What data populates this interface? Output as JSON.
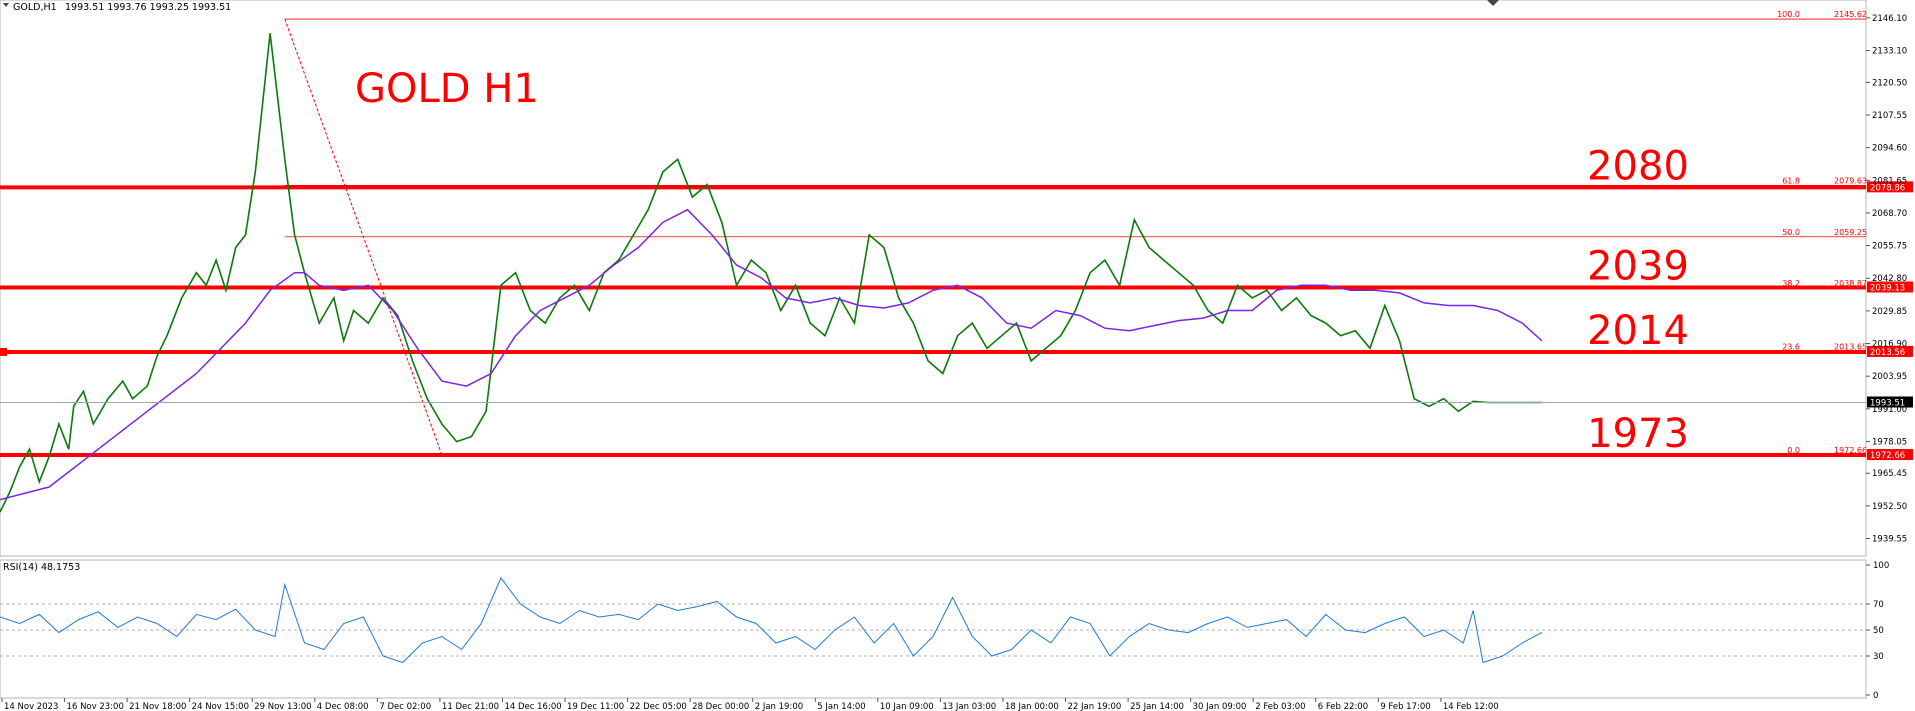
{
  "chart_data": {
    "type": "line",
    "header": {
      "symbol": "GOLD,H1",
      "ohlc": "1993.51 1993.76 1993.25 1993.51"
    },
    "title": "GOLD H1",
    "price_axis": {
      "ylim": [
        1935.0,
        2150.0
      ],
      "ticks": [
        "2146.10",
        "2133.10",
        "2120.50",
        "2107.55",
        "2094.60",
        "2081.65",
        "2068.70",
        "2055.75",
        "2042.80",
        "2029.85",
        "2016.90",
        "2003.95",
        "1991.00",
        "1978.05",
        "1965.45",
        "1952.50",
        "1939.55"
      ]
    },
    "time_labels": [
      "14 Nov 2023",
      "16 Nov 23:00",
      "21 Nov 18:00",
      "24 Nov 15:00",
      "29 Nov 13:00",
      "4 Dec 08:00",
      "7 Dec 02:00",
      "11 Dec 21:00",
      "14 Dec 16:00",
      "19 Dec 11:00",
      "22 Dec 05:00",
      "28 Dec 00:00",
      "2 Jan 19:00",
      "5 Jan 14:00",
      "10 Jan 09:00",
      "13 Jan 03:00",
      "18 Jan 00:00",
      "22 Jan 19:00",
      "25 Jan 14:00",
      "30 Jan 09:00",
      "2 Feb 03:00",
      "6 Feb 22:00",
      "9 Feb 17:00",
      "14 Feb 12:00"
    ],
    "price_series": {
      "name": "GOLD",
      "x": [
        0,
        2,
        4,
        6,
        8,
        10,
        12,
        14,
        15,
        17,
        19,
        22,
        25,
        27,
        30,
        32,
        34,
        37,
        40,
        42,
        44,
        46,
        48,
        50,
        52,
        55,
        58,
        60,
        62,
        65,
        68,
        70,
        72,
        75,
        78,
        81,
        84,
        87,
        90,
        93,
        96,
        99,
        102,
        105,
        108,
        111,
        114,
        117,
        120,
        123,
        126,
        129,
        132,
        135,
        138,
        141,
        144,
        147,
        150,
        153,
        156,
        159,
        162,
        165,
        168,
        171,
        174,
        177,
        180,
        183,
        186,
        189,
        192,
        195,
        198,
        201,
        204,
        207,
        210,
        213,
        216,
        219,
        222,
        225,
        228,
        231,
        234,
        237,
        240,
        243,
        246,
        249,
        252,
        255,
        258,
        261,
        264,
        267,
        270,
        273,
        276,
        279,
        282,
        285,
        288,
        291,
        294,
        297,
        300,
        303,
        306,
        309,
        312,
        314
      ],
      "values": [
        1950,
        1958,
        1968,
        1975,
        1962,
        1972,
        1985,
        1975,
        1992,
        1998,
        1985,
        1995,
        2002,
        1995,
        2000,
        2012,
        2020,
        2035,
        2045,
        2040,
        2050,
        2038,
        2055,
        2060,
        2085,
        2140,
        2090,
        2060,
        2045,
        2025,
        2035,
        2018,
        2030,
        2025,
        2035,
        2028,
        2010,
        1995,
        1985,
        1978,
        1980,
        1990,
        2040,
        2045,
        2030,
        2025,
        2035,
        2040,
        2030,
        2045,
        2050,
        2060,
        2070,
        2085,
        2090,
        2075,
        2080,
        2065,
        2040,
        2050,
        2045,
        2030,
        2040,
        2025,
        2020,
        2035,
        2025,
        2060,
        2055,
        2035,
        2025,
        2010,
        2005,
        2020,
        2025,
        2015,
        2020,
        2025,
        2010,
        2015,
        2020,
        2030,
        2045,
        2050,
        2040,
        2066,
        2055,
        2050,
        2045,
        2040,
        2030,
        2025,
        2040,
        2035,
        2038,
        2030,
        2035,
        2028,
        2025,
        2020,
        2022,
        2015,
        2032,
        2018,
        1995,
        1992,
        1995,
        1990,
        1994,
        1993.5,
        1993.5,
        1993.5,
        1993.5,
        1993.5
      ],
      "color": "#0a7a0a"
    },
    "moving_average": {
      "x": [
        0,
        10,
        20,
        30,
        40,
        50,
        55,
        60,
        62,
        65,
        70,
        75,
        80,
        85,
        90,
        95,
        100,
        105,
        110,
        115,
        120,
        125,
        130,
        135,
        140,
        145,
        150,
        155,
        160,
        165,
        170,
        175,
        180,
        185,
        190,
        195,
        200,
        205,
        210,
        215,
        220,
        225,
        230,
        235,
        240,
        245,
        250,
        255,
        260,
        265,
        270,
        275,
        280,
        285,
        290,
        295,
        300,
        305,
        310,
        314
      ],
      "values": [
        1955,
        1960,
        1975,
        1990,
        2005,
        2025,
        2038,
        2045,
        2045,
        2040,
        2038,
        2040,
        2030,
        2015,
        2002,
        2000,
        2005,
        2020,
        2030,
        2035,
        2040,
        2048,
        2055,
        2065,
        2070,
        2060,
        2048,
        2043,
        2035,
        2033,
        2035,
        2032,
        2031,
        2033,
        2038,
        2040,
        2035,
        2025,
        2023,
        2030,
        2028,
        2023,
        2022,
        2024,
        2026,
        2027,
        2030,
        2030,
        2038,
        2040,
        2040,
        2038,
        2038,
        2037,
        2033,
        2032,
        2032,
        2030,
        2025,
        2018
      ],
      "color": "#7b24e8"
    },
    "levels": [
      {
        "label": "2080",
        "value": 2078.86,
        "badge": "2078.86",
        "color": "#ff0000"
      },
      {
        "label": "2039",
        "value": 2039.13,
        "badge": "2039.13",
        "color": "#ff0000"
      },
      {
        "label": "2014",
        "value": 2013.56,
        "badge": "2013.56",
        "color": "#ff0000"
      },
      {
        "label": "1973",
        "value": 1972.66,
        "badge": "1972.66",
        "color": "#ff0000"
      }
    ],
    "fibonacci": {
      "from_x": 58,
      "from_value": 2145.62,
      "to_x": 90,
      "to_value": 1972.66,
      "levels": [
        {
          "ratio": "100.0",
          "price": "2145.62",
          "value": 2145.62
        },
        {
          "ratio": "61.8",
          "price": "2079.63",
          "value": 2079.63
        },
        {
          "ratio": "50.0",
          "price": "2059.25",
          "value": 2059.25
        },
        {
          "ratio": "38.2",
          "price": "2038.87",
          "value": 2038.87
        },
        {
          "ratio": "23.6",
          "price": "2013.65",
          "value": 2013.65
        },
        {
          "ratio": "0.0",
          "price": "1972.66",
          "value": 1972.66
        }
      ]
    },
    "current_price": {
      "value": 1993.51,
      "label": "1993.51"
    },
    "rsi": {
      "header": "RSI(14) 48.1753",
      "ticks": [
        "100",
        "70",
        "50",
        "30",
        "0"
      ],
      "levels": [
        70,
        50,
        30
      ],
      "x": [
        0,
        4,
        8,
        12,
        16,
        20,
        24,
        28,
        32,
        36,
        40,
        44,
        48,
        52,
        56,
        58,
        62,
        66,
        70,
        74,
        78,
        82,
        86,
        90,
        94,
        98,
        102,
        106,
        110,
        114,
        118,
        122,
        126,
        130,
        134,
        138,
        142,
        146,
        150,
        154,
        158,
        162,
        166,
        170,
        174,
        178,
        182,
        186,
        190,
        194,
        198,
        202,
        206,
        210,
        214,
        218,
        222,
        226,
        230,
        234,
        238,
        242,
        246,
        250,
        254,
        258,
        262,
        266,
        270,
        274,
        278,
        282,
        286,
        290,
        294,
        298,
        300,
        302,
        306,
        310,
        314
      ],
      "values": [
        60,
        55,
        62,
        48,
        58,
        64,
        52,
        60,
        55,
        45,
        62,
        58,
        66,
        50,
        45,
        85,
        40,
        35,
        55,
        60,
        30,
        25,
        40,
        45,
        35,
        55,
        90,
        70,
        60,
        55,
        65,
        60,
        62,
        58,
        70,
        65,
        68,
        72,
        60,
        55,
        40,
        45,
        35,
        50,
        60,
        40,
        55,
        30,
        45,
        75,
        45,
        30,
        35,
        50,
        40,
        60,
        55,
        30,
        45,
        55,
        50,
        48,
        55,
        60,
        52,
        55,
        58,
        45,
        62,
        50,
        48,
        55,
        60,
        45,
        50,
        40,
        65,
        25,
        30,
        40,
        48.18
      ],
      "color": "#1e7ad8"
    },
    "annotations": []
  }
}
